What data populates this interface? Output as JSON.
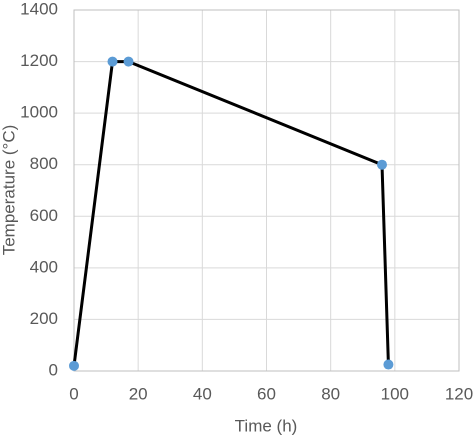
{
  "chart_data": {
    "type": "line",
    "x_label": "Time (h)",
    "y_label": "Temperature (°C)",
    "x": [
      0,
      12,
      17,
      96,
      98
    ],
    "values": [
      20,
      1200,
      1200,
      800,
      25
    ],
    "line_color": "#000000",
    "marker_color": "#5b9bd5",
    "xlim": [
      0,
      120
    ],
    "xticks": [
      0,
      20,
      40,
      60,
      80,
      100,
      120
    ],
    "ylim": [
      0,
      1400
    ],
    "yticks": [
      0,
      200,
      400,
      600,
      800,
      1000,
      1200,
      1400
    ],
    "grid": true
  }
}
